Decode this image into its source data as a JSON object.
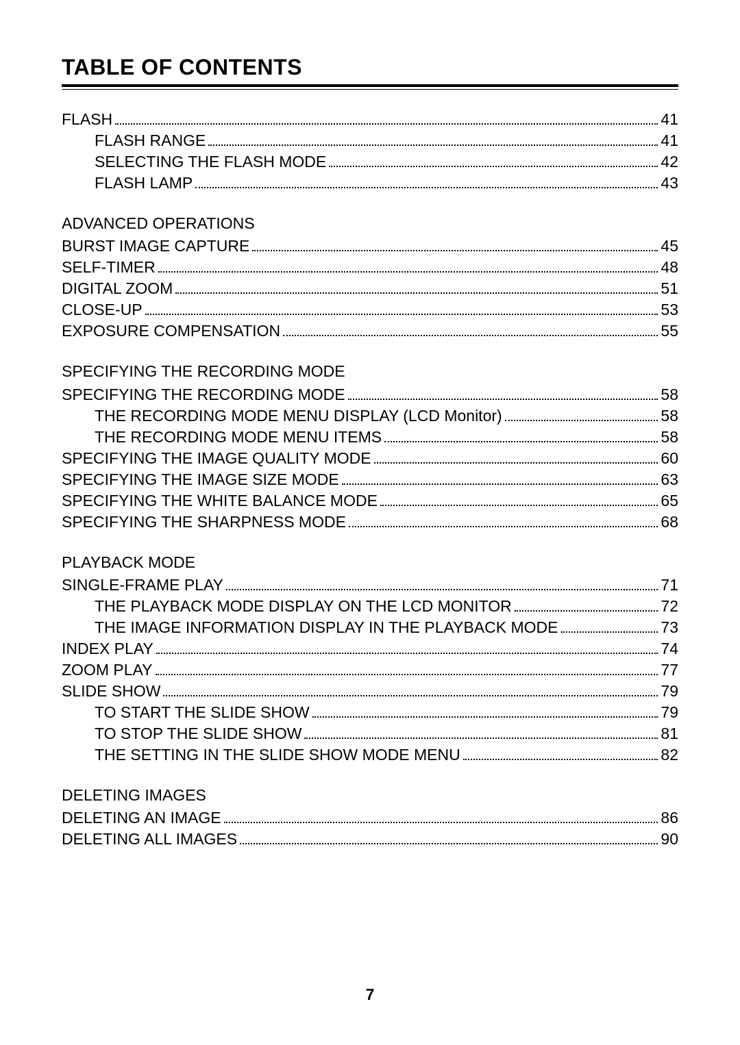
{
  "title": "TABLE OF CONTENTS",
  "page_number": "7",
  "font": {
    "family": "Arial, Helvetica, sans-serif",
    "title_size_pt": 24,
    "body_size_pt": 17,
    "color": "#000000"
  },
  "background_color": "#ffffff",
  "sections": [
    {
      "heading": null,
      "entries": [
        {
          "label": "FLASH",
          "page": "41",
          "indent": 0
        },
        {
          "label": "FLASH RANGE",
          "page": "41",
          "indent": 1
        },
        {
          "label": "SELECTING THE FLASH MODE",
          "page": "42",
          "indent": 1
        },
        {
          "label": "FLASH LAMP",
          "page": "43",
          "indent": 1
        }
      ]
    },
    {
      "heading": "ADVANCED OPERATIONS",
      "entries": [
        {
          "label": "BURST IMAGE CAPTURE",
          "page": "45",
          "indent": 0
        },
        {
          "label": "SELF-TIMER",
          "page": "48",
          "indent": 0
        },
        {
          "label": "DIGITAL ZOOM",
          "page": "51",
          "indent": 0
        },
        {
          "label": "CLOSE-UP",
          "page": "53",
          "indent": 0
        },
        {
          "label": "EXPOSURE COMPENSATION",
          "page": "55",
          "indent": 0
        }
      ]
    },
    {
      "heading": "SPECIFYING THE RECORDING MODE",
      "entries": [
        {
          "label": "SPECIFYING THE RECORDING MODE",
          "page": "58",
          "indent": 0
        },
        {
          "label": "THE RECORDING MODE MENU DISPLAY (LCD Monitor)",
          "page": "58",
          "indent": 1
        },
        {
          "label": "THE RECORDING MODE MENU ITEMS",
          "page": "58",
          "indent": 1
        },
        {
          "label": "SPECIFYING THE IMAGE QUALITY MODE",
          "page": "60",
          "indent": 0
        },
        {
          "label": "SPECIFYING THE IMAGE SIZE MODE",
          "page": "63",
          "indent": 0
        },
        {
          "label": "SPECIFYING THE WHITE BALANCE MODE",
          "page": "65",
          "indent": 0
        },
        {
          "label": "SPECIFYING THE SHARPNESS MODE",
          "page": "68",
          "indent": 0
        }
      ]
    },
    {
      "heading": "PLAYBACK MODE",
      "entries": [
        {
          "label": "SINGLE-FRAME PLAY",
          "page": "71",
          "indent": 0
        },
        {
          "label": "THE PLAYBACK MODE DISPLAY ON THE LCD MONITOR",
          "page": "72",
          "indent": 1
        },
        {
          "label": "THE IMAGE INFORMATION DISPLAY IN THE PLAYBACK MODE",
          "page": "73",
          "indent": 1
        },
        {
          "label": "INDEX PLAY",
          "page": "74",
          "indent": 0
        },
        {
          "label": "ZOOM PLAY",
          "page": "77",
          "indent": 0
        },
        {
          "label": "SLIDE SHOW",
          "page": "79",
          "indent": 0
        },
        {
          "label": "TO START THE SLIDE SHOW",
          "page": "79",
          "indent": 1
        },
        {
          "label": "TO STOP THE SLIDE SHOW",
          "page": "81",
          "indent": 1
        },
        {
          "label": "THE SETTING IN THE SLIDE SHOW MODE MENU",
          "page": "82",
          "indent": 1
        }
      ]
    },
    {
      "heading": "DELETING IMAGES",
      "entries": [
        {
          "label": "DELETING AN IMAGE",
          "page": "86",
          "indent": 0
        },
        {
          "label": "DELETING ALL IMAGES",
          "page": "90",
          "indent": 0
        }
      ]
    }
  ]
}
